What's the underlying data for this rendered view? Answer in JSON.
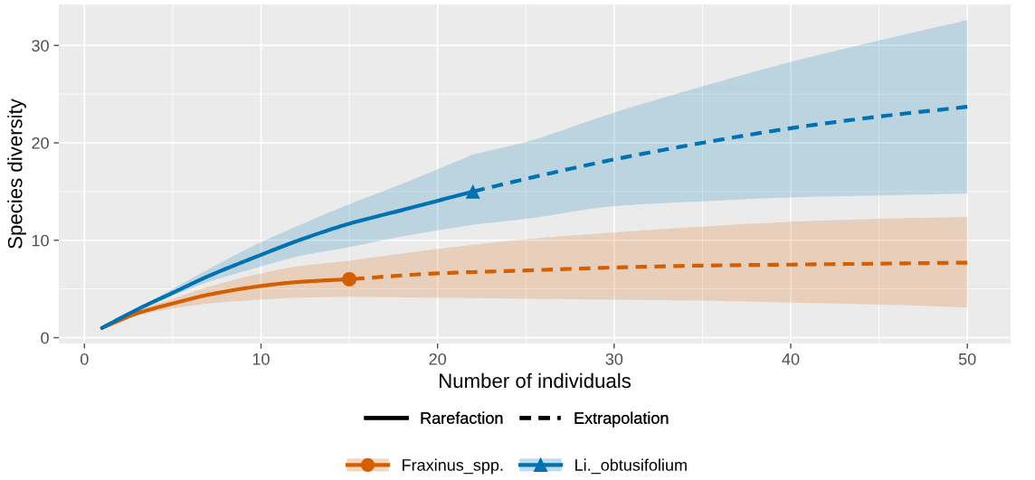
{
  "chart_data": {
    "type": "line",
    "xlabel": "Number of individuals",
    "ylabel": "Species diversity",
    "xlim": [
      -1.45,
      52.45
    ],
    "xticks": [
      0,
      10,
      20,
      30,
      40,
      50
    ],
    "ylim": [
      -0.6,
      34.2
    ],
    "yticks": [
      0,
      10,
      20,
      30
    ],
    "grid": true,
    "legend": "bottom",
    "annotations": [
      "Rarefaction",
      "Extrapolation"
    ],
    "series": [
      {
        "color": "#d55e00",
        "line_style": "solid",
        "x": [
          1,
          3,
          5,
          7,
          10,
          12,
          15
        ],
        "values": [
          1,
          2.5,
          3.5,
          4.4,
          5.3,
          5.7,
          6.0
        ],
        "lower": [
          1,
          2.3,
          3.0,
          3.5,
          3.9,
          4.1,
          4.2
        ],
        "upper": [
          1,
          2.8,
          4.0,
          5.2,
          6.6,
          7.3,
          7.9
        ]
      },
      {
        "color": "#d55e00",
        "line_style": "dashed",
        "x": [
          15,
          20,
          25,
          30,
          35,
          40,
          45,
          50
        ],
        "values": [
          6.0,
          6.6,
          6.9,
          7.2,
          7.4,
          7.5,
          7.6,
          7.7
        ],
        "lower": [
          4.2,
          4.1,
          4.0,
          3.9,
          3.8,
          3.6,
          3.4,
          3.1
        ],
        "upper": [
          7.9,
          9.1,
          10.1,
          10.8,
          11.4,
          11.9,
          12.2,
          12.4
        ]
      },
      {
        "color": "#0072b2",
        "line_style": "solid",
        "x": [
          1,
          3,
          5,
          7,
          10,
          12,
          15,
          18,
          22
        ],
        "values": [
          1,
          2.9,
          4.6,
          6.3,
          8.5,
          9.9,
          11.7,
          13.1,
          15.0
        ],
        "lower": [
          1,
          2.8,
          4.3,
          5.7,
          7.3,
          8.3,
          9.3,
          10.4,
          11.6
        ],
        "upper": [
          1,
          3.0,
          5.0,
          7.0,
          9.8,
          11.4,
          13.7,
          15.8,
          18.8
        ]
      },
      {
        "color": "#0072b2",
        "line_style": "dashed",
        "x": [
          22,
          25,
          30,
          35,
          40,
          45,
          50
        ],
        "values": [
          15.0,
          16.3,
          18.3,
          20.0,
          21.5,
          22.7,
          23.7
        ],
        "lower": [
          11.6,
          12.2,
          13.5,
          14.0,
          14.4,
          14.6,
          14.8
        ],
        "upper": [
          18.8,
          20.1,
          23.1,
          25.8,
          28.3,
          30.5,
          32.6
        ]
      },
      {
        "type": "scatter",
        "name": "Fraxinus_spp.",
        "color": "#d55e00",
        "marker": "circle",
        "x": [
          15
        ],
        "values": [
          6.0
        ]
      },
      {
        "type": "scatter",
        "name": "Li._obtusifolium",
        "color": "#0072b2",
        "marker": "triangle",
        "x": [
          22
        ],
        "values": [
          15.0
        ]
      }
    ]
  }
}
